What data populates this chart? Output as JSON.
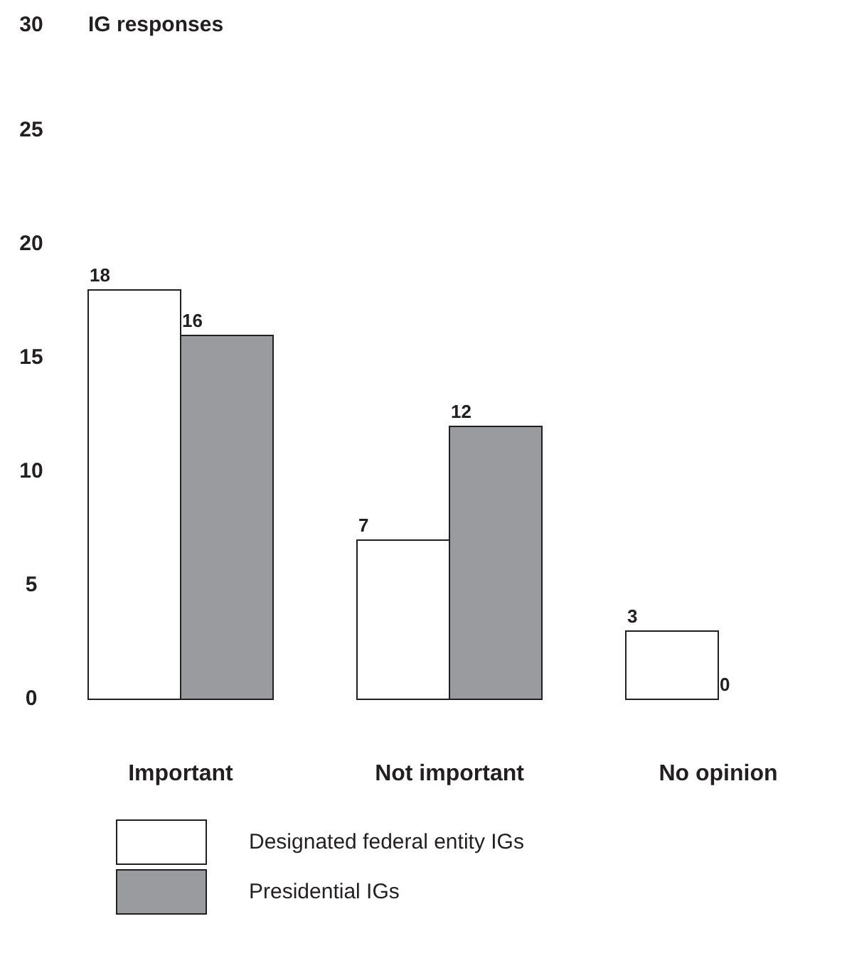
{
  "chart_data": {
    "type": "bar",
    "ylabel": "IG responses",
    "categories": [
      "Important",
      "Not important",
      "No opinion"
    ],
    "series": [
      {
        "name": "Designated federal entity IGs",
        "color": "#ffffff",
        "values": [
          18,
          7,
          3
        ]
      },
      {
        "name": "Presidential IGs",
        "color": "#9a9b9e",
        "values": [
          16,
          12,
          0
        ]
      }
    ],
    "ylim": [
      0,
      30
    ],
    "yticks": [
      0,
      5,
      10,
      15,
      20,
      25,
      30
    ],
    "data_labels": true,
    "legend": "bottom"
  }
}
